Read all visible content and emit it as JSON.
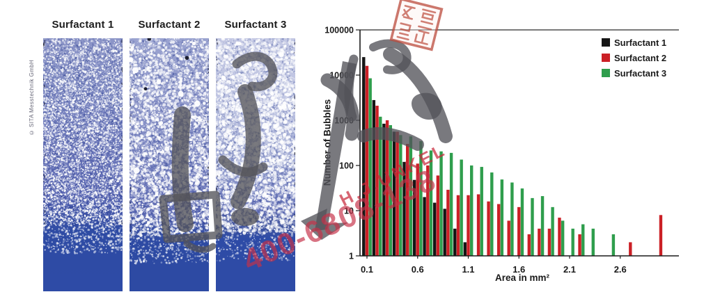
{
  "foam_section": {
    "copyright": "© SITA Messtechnik GmbH",
    "panels": [
      {
        "label": "Surfactant 1"
      },
      {
        "label": "Surfactant 2"
      },
      {
        "label": "Surfactant 3"
      }
    ]
  },
  "watermark": {
    "name_text": "H.J.UNKEL",
    "phone_text": "400-6808-138",
    "red_color": "#c73048",
    "gray_color": "#53535a"
  },
  "chart_data": {
    "type": "bar",
    "title": "",
    "xlabel": "Area in mm²",
    "ylabel": "Number of Bubbles",
    "y_scale": "log",
    "ylim": [
      1,
      100000
    ],
    "x_range": [
      0.1,
      3.0
    ],
    "grid": false,
    "legend_position": "top-right",
    "ytick_labels": [
      "1",
      "10",
      "100",
      "1000",
      "10000",
      "100000"
    ],
    "xtick_labels": [
      "0.1",
      "0.6",
      "1.1",
      "1.6",
      "2.1",
      "2.6"
    ],
    "categories": [
      0.1,
      0.2,
      0.3,
      0.4,
      0.5,
      0.6,
      0.7,
      0.8,
      0.9,
      1.0,
      1.1,
      1.2,
      1.3,
      1.4,
      1.5,
      1.6,
      1.7,
      1.8,
      1.9,
      2.0,
      2.1,
      2.2,
      2.3,
      2.4,
      2.5,
      2.6,
      2.7,
      2.8,
      2.9,
      3.0
    ],
    "series": [
      {
        "name": "Surfactant 1",
        "color": "#151515",
        "values": [
          25000,
          2800,
          840,
          560,
          120,
          48,
          20,
          15,
          11,
          4,
          2,
          null,
          null,
          null,
          null,
          null,
          null,
          null,
          null,
          null,
          null,
          null,
          null,
          null,
          null,
          null,
          null,
          null,
          null,
          null
        ]
      },
      {
        "name": "Surfactant 2",
        "color": "#cb2026",
        "values": [
          16000,
          2100,
          1000,
          560,
          300,
          110,
          100,
          60,
          29,
          22,
          22,
          23,
          16,
          14,
          6,
          12,
          3,
          4,
          4,
          7,
          null,
          3,
          null,
          null,
          null,
          null,
          2,
          null,
          null,
          8
        ]
      },
      {
        "name": "Surfactant 3",
        "color": "#2f9e4d",
        "values": [
          8500,
          1200,
          780,
          470,
          440,
          345,
          215,
          205,
          190,
          135,
          100,
          93,
          70,
          49,
          42,
          31,
          19,
          21,
          12,
          6,
          4,
          5,
          4,
          null,
          3,
          null,
          null,
          null,
          null,
          null
        ]
      }
    ]
  }
}
